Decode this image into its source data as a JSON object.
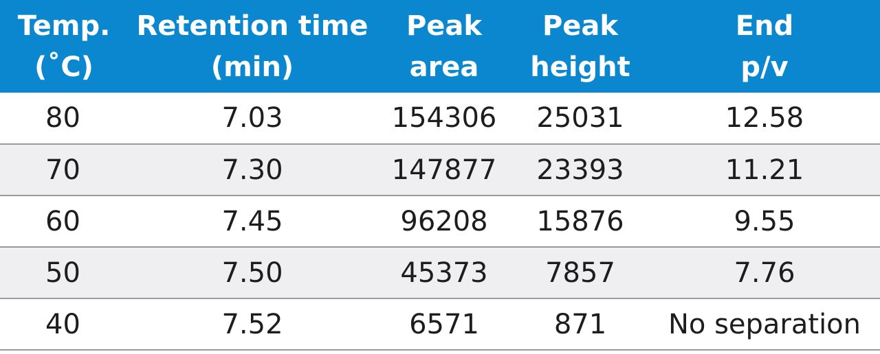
{
  "header": {
    "temp": [
      "Temp.",
      "(˚C)"
    ],
    "retention": [
      "Retention time",
      "(min)"
    ],
    "area": [
      "Peak",
      "area"
    ],
    "height": [
      "Peak",
      "height"
    ],
    "end": [
      "End",
      "p/v"
    ]
  },
  "rows": [
    {
      "temp": "80",
      "retention": "7.03",
      "area": "154306",
      "height": "25031",
      "end": "12.58"
    },
    {
      "temp": "70",
      "retention": "7.30",
      "area": "147877",
      "height": "23393",
      "end": "11.21"
    },
    {
      "temp": "60",
      "retention": "7.45",
      "area": "96208",
      "height": "15876",
      "end": "9.55"
    },
    {
      "temp": "50",
      "retention": "7.50",
      "area": "45373",
      "height": "7857",
      "end": "7.76"
    },
    {
      "temp": "40",
      "retention": "7.52",
      "area": "6571",
      "height": "871",
      "end": "No separation"
    }
  ],
  "colors": {
    "header_bg": "#0a87cf",
    "header_text": "#ffffff",
    "shaded_row": "#efeff1",
    "row_border": "#9a9a9e"
  }
}
